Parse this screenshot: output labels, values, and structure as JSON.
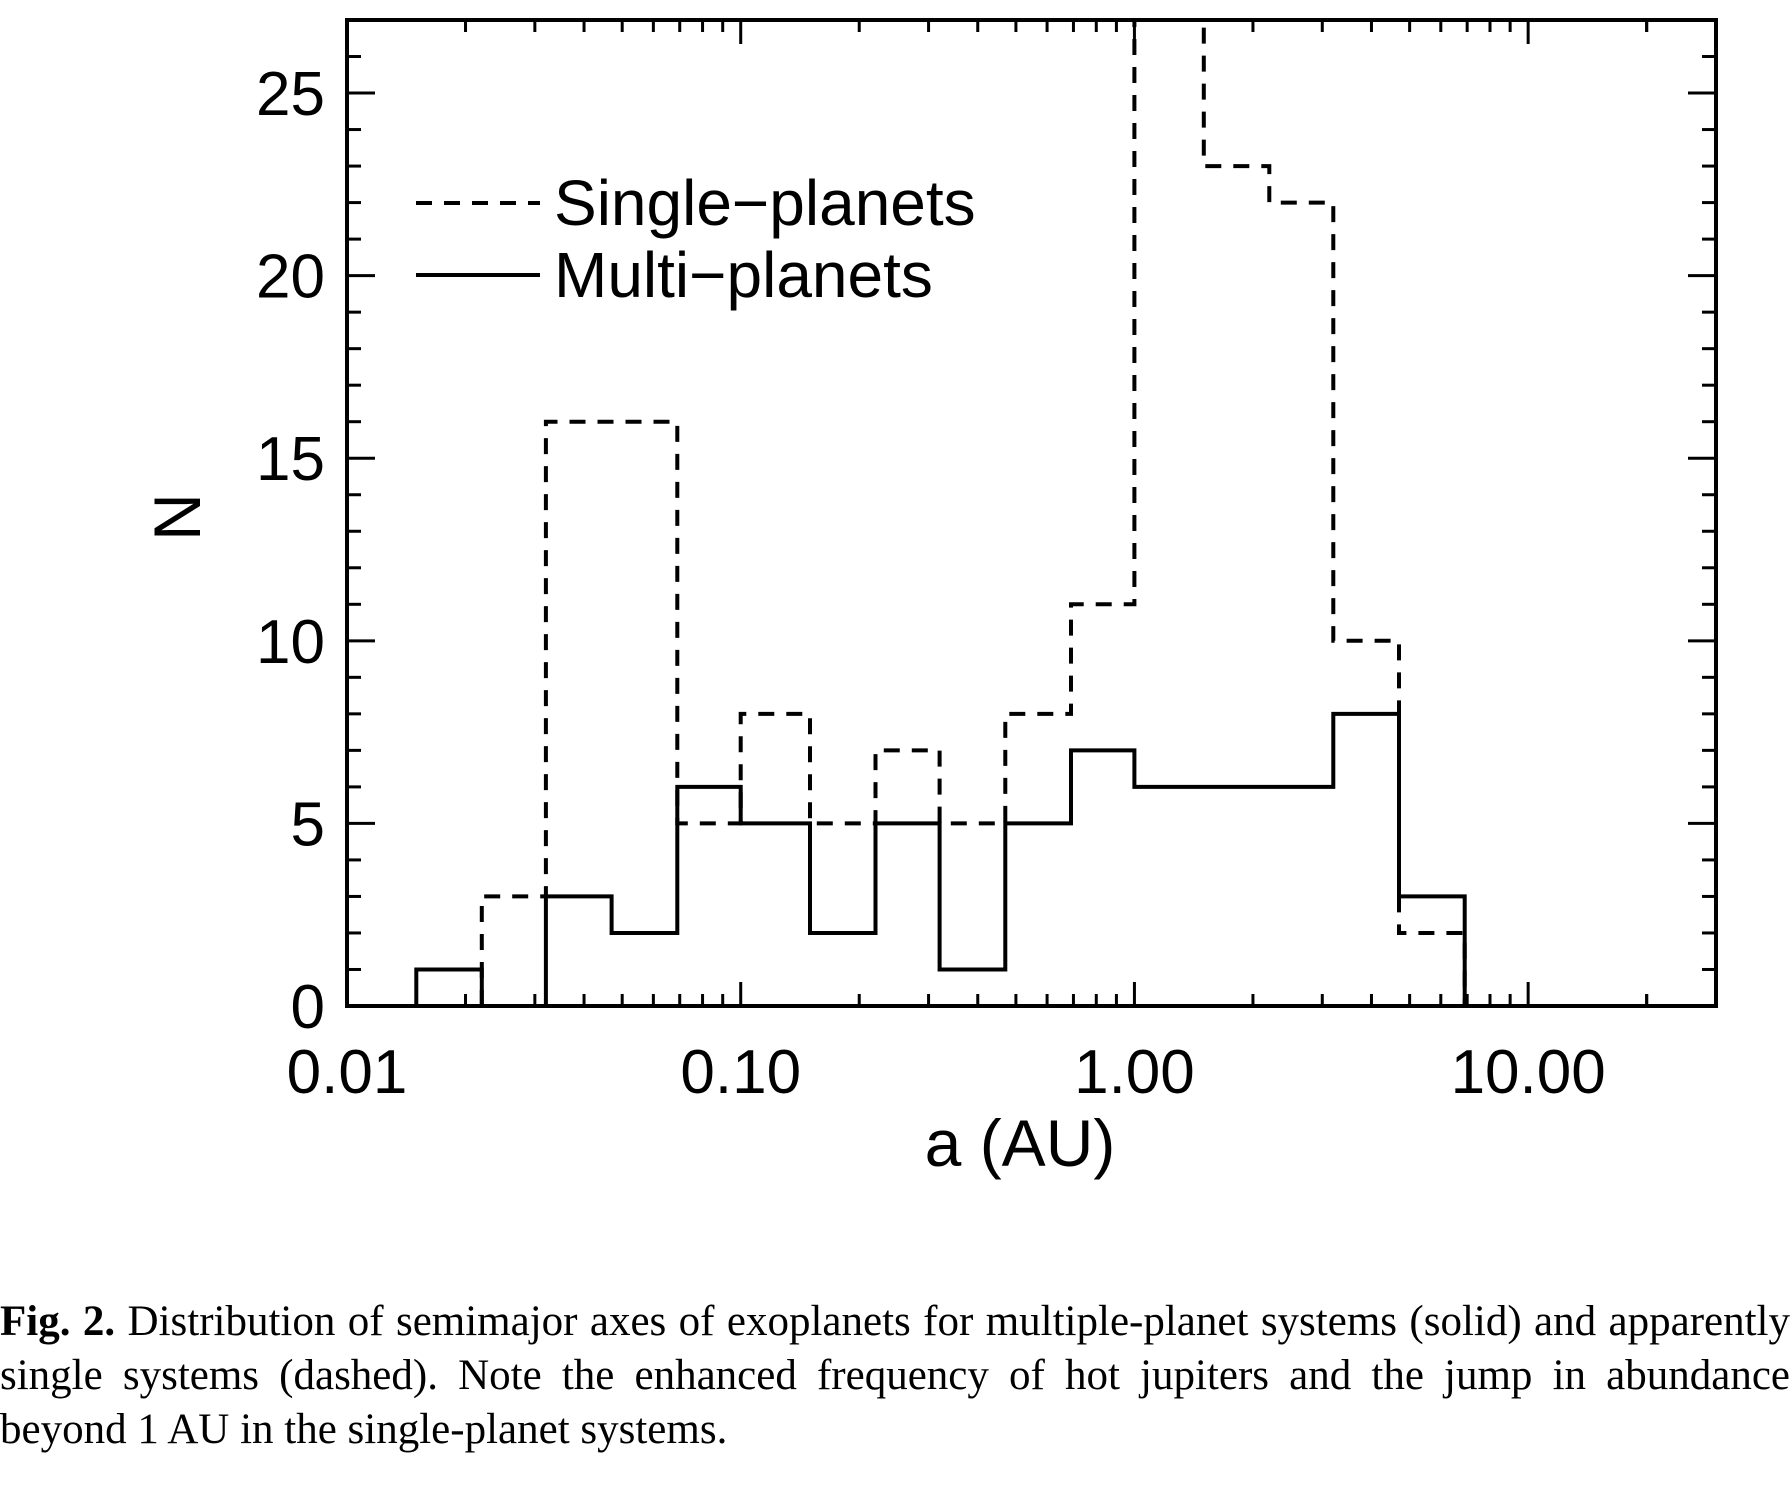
{
  "chart_data": {
    "type": "histogram",
    "x_scale": "log",
    "xlim": [
      0.01,
      30
    ],
    "ylim": [
      0,
      27
    ],
    "xlabel": "a (AU)",
    "ylabel": "N",
    "x_ticks": [
      {
        "value": 0.01,
        "label": "0.01"
      },
      {
        "value": 0.1,
        "label": "0.10"
      },
      {
        "value": 1,
        "label": "1.00"
      },
      {
        "value": 10,
        "label": "10.00"
      }
    ],
    "y_ticks": [
      {
        "value": 0,
        "label": "0"
      },
      {
        "value": 5,
        "label": "5"
      },
      {
        "value": 10,
        "label": "10"
      },
      {
        "value": 15,
        "label": "15"
      },
      {
        "value": 20,
        "label": "20"
      },
      {
        "value": 25,
        "label": "25"
      }
    ],
    "legend_position": "top-left",
    "bin_edges": [
      0.015,
      0.022,
      0.032,
      0.047,
      0.069,
      0.1,
      0.15,
      0.22,
      0.32,
      0.47,
      0.69,
      1.0,
      1.5,
      2.2,
      3.2,
      4.7,
      6.9
    ],
    "series": [
      {
        "name": "Single−planets",
        "style": "dashed",
        "values": [
          0,
          3,
          16,
          16,
          5,
          8,
          5,
          7,
          5,
          8,
          11,
          28,
          23,
          22,
          10,
          2
        ]
      },
      {
        "name": "Multi−planets",
        "style": "solid",
        "values": [
          1,
          0,
          3,
          2,
          6,
          5,
          2,
          5,
          1,
          5,
          7,
          6,
          6,
          6,
          8,
          3
        ]
      }
    ]
  },
  "caption": {
    "label": "Fig. 2.",
    "text": " Distribution of semimajor axes of exoplanets for multiple-planet systems (solid) and apparently single systems (dashed).  Note the enhanced frequency of hot jupiters and the jump in abundance beyond 1 AU in the single-planet systems."
  }
}
